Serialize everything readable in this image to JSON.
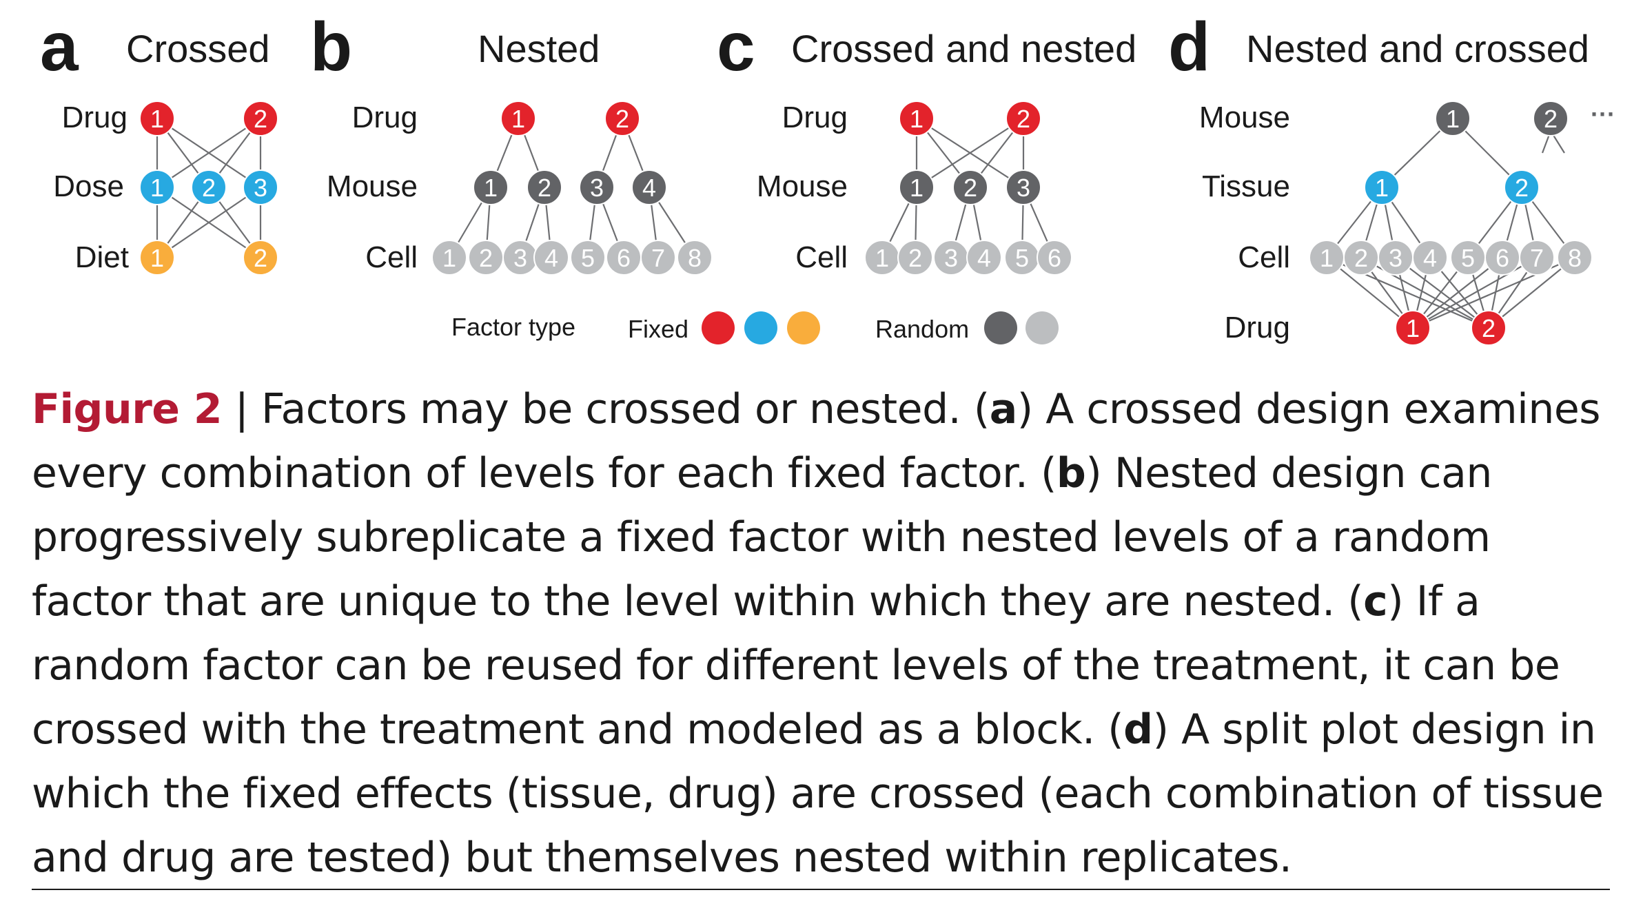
{
  "colors": {
    "fixed_red": "#e3232b",
    "fixed_blue": "#27a9e1",
    "fixed_orange": "#f9ad3c",
    "random_dark": "#626366",
    "random_light": "#bcbec0",
    "caption_label": "#b31b34"
  },
  "panels": {
    "a": {
      "letter": "a",
      "title": "Crossed",
      "rows": [
        "Drug",
        "Dose",
        "Diet"
      ]
    },
    "b": {
      "letter": "b",
      "title": "Nested",
      "rows": [
        "Drug",
        "Mouse",
        "Cell"
      ]
    },
    "c": {
      "letter": "c",
      "title": "Crossed and nested",
      "rows": [
        "Drug",
        "Mouse",
        "Cell"
      ]
    },
    "d": {
      "letter": "d",
      "title": "Nested and crossed",
      "rows": [
        "Mouse",
        "Tissue",
        "Cell",
        "Drug"
      ],
      "ellipsis": "···"
    }
  },
  "legend": {
    "title": "Factor type",
    "fixed": "Fixed",
    "random": "Random"
  },
  "caption": {
    "label": "Figure 2",
    "sep": " | ",
    "s1": "Factors may be crossed or nested. (",
    "a": "a",
    "s2": ") A crossed design examines every combination of levels for each fixed factor. (",
    "b": "b",
    "s3": ") Nested design can progressively subreplicate a fixed factor with nested levels of a random factor that are unique to the level within which they are nested. (",
    "c": "c",
    "s4": ") If a random factor can be reused for different levels of the treatment, it can be crossed with the treatment and modeled as a block. (",
    "d": "d",
    "s5": ") A split plot design in which the fixed effects (tissue, drug) are crossed (each combination of tissue and drug are tested) but themselves nested within replicates."
  }
}
